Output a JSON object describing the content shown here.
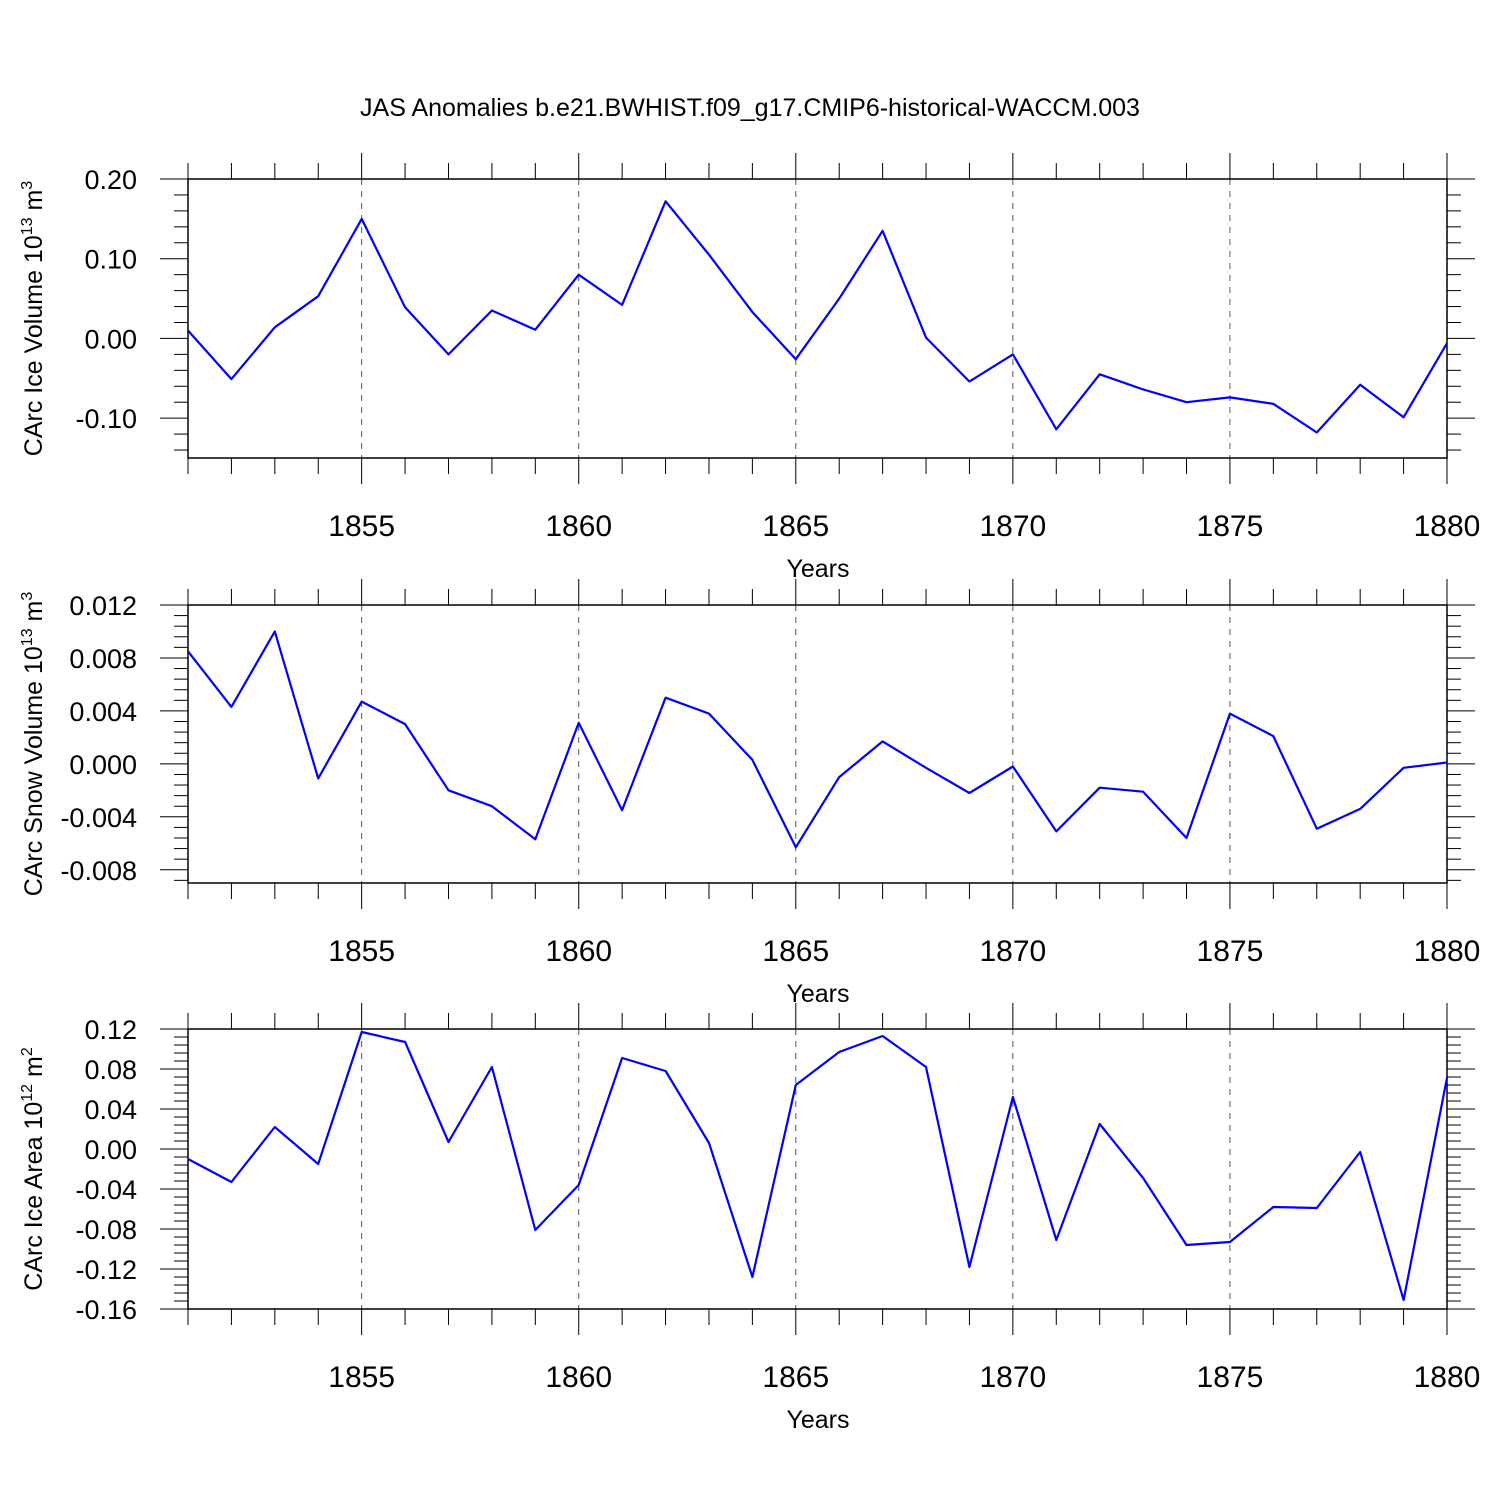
{
  "page": {
    "title": "JAS Anomalies b.e21.BWHIST.f09_g17.CMIP6-historical-WACCM.003"
  },
  "colors": {
    "series": "#0000ff",
    "axis": "#000000",
    "grid": "#555555"
  },
  "chart_data": [
    {
      "type": "line",
      "title": "JAS Anomalies b.e21.BWHIST.f09_g17.CMIP6-historical-WACCM.003",
      "xlabel": "Years",
      "ylabel": {
        "text": "CArc Ice Volume 10",
        "sup": "13",
        "unit": " m",
        "unit_sup": "3"
      },
      "xlim": [
        1851,
        1880
      ],
      "ylim": [
        -0.15,
        0.2
      ],
      "yticks": [
        -0.1,
        0.0,
        0.1,
        0.2
      ],
      "ytick_labels": [
        "-0.10",
        "0.00",
        "0.10",
        "0.20"
      ],
      "xticks": [
        1855,
        1860,
        1865,
        1870,
        1875,
        1880
      ],
      "xtick_labels": [
        "1855",
        "1860",
        "1865",
        "1870",
        "1875",
        "1880"
      ],
      "grid_x": [
        1855,
        1860,
        1865,
        1870,
        1875
      ],
      "x": [
        1851,
        1852,
        1853,
        1854,
        1855,
        1856,
        1857,
        1858,
        1859,
        1860,
        1861,
        1862,
        1863,
        1864,
        1865,
        1866,
        1867,
        1868,
        1869,
        1870,
        1871,
        1872,
        1873,
        1874,
        1875,
        1876,
        1877,
        1878,
        1879,
        1880
      ],
      "values": [
        0.01,
        -0.051,
        0.014,
        0.053,
        0.15,
        0.039,
        -0.02,
        0.035,
        0.011,
        0.08,
        0.042,
        0.172,
        0.105,
        0.033,
        -0.026,
        0.05,
        0.135,
        0.001,
        -0.054,
        -0.02,
        -0.114,
        -0.045,
        -0.064,
        -0.08,
        -0.074,
        -0.082,
        -0.118,
        -0.058,
        -0.099,
        -0.006
      ]
    },
    {
      "type": "line",
      "title": "",
      "xlabel": "Years",
      "ylabel": {
        "text": "CArc Snow Volume 10",
        "sup": "13",
        "unit": " m",
        "unit_sup": "3"
      },
      "xlim": [
        1851,
        1880
      ],
      "ylim": [
        -0.009,
        0.012
      ],
      "yticks": [
        -0.008,
        -0.004,
        0.0,
        0.004,
        0.008,
        0.012
      ],
      "ytick_labels": [
        "-0.008",
        "-0.004",
        "0.000",
        "0.004",
        "0.008",
        "0.012"
      ],
      "xticks": [
        1855,
        1860,
        1865,
        1870,
        1875,
        1880
      ],
      "xtick_labels": [
        "1855",
        "1860",
        "1865",
        "1870",
        "1875",
        "1880"
      ],
      "grid_x": [
        1855,
        1860,
        1865,
        1870,
        1875
      ],
      "x": [
        1851,
        1852,
        1853,
        1854,
        1855,
        1856,
        1857,
        1858,
        1859,
        1860,
        1861,
        1862,
        1863,
        1864,
        1865,
        1866,
        1867,
        1868,
        1869,
        1870,
        1871,
        1872,
        1873,
        1874,
        1875,
        1876,
        1877,
        1878,
        1879,
        1880
      ],
      "values": [
        0.0085,
        0.0043,
        0.01,
        -0.0011,
        0.0047,
        0.003,
        -0.002,
        -0.0032,
        -0.0057,
        0.0031,
        -0.0035,
        0.005,
        0.0038,
        0.0003,
        -0.0063,
        -0.001,
        0.0017,
        -0.0003,
        -0.0022,
        -0.0002,
        -0.0051,
        -0.0018,
        -0.0021,
        -0.0056,
        0.0038,
        0.0021,
        -0.0049,
        -0.0034,
        -0.0003,
        0.0001
      ]
    },
    {
      "type": "line",
      "title": "",
      "xlabel": "Years",
      "ylabel": {
        "text": "CArc Ice Area 10",
        "sup": "12",
        "unit": " m",
        "unit_sup": "2"
      },
      "xlim": [
        1851,
        1880
      ],
      "ylim": [
        -0.16,
        0.12
      ],
      "yticks": [
        -0.16,
        -0.12,
        -0.08,
        -0.04,
        0.0,
        0.04,
        0.08,
        0.12
      ],
      "ytick_labels": [
        "-0.16",
        "-0.12",
        "-0.08",
        "-0.04",
        "0.00",
        "0.04",
        "0.08",
        "0.12"
      ],
      "xticks": [
        1855,
        1860,
        1865,
        1870,
        1875,
        1880
      ],
      "xtick_labels": [
        "1855",
        "1860",
        "1865",
        "1870",
        "1875",
        "1880"
      ],
      "grid_x": [
        1855,
        1860,
        1865,
        1870,
        1875
      ],
      "x": [
        1851,
        1852,
        1853,
        1854,
        1855,
        1856,
        1857,
        1858,
        1859,
        1860,
        1861,
        1862,
        1863,
        1864,
        1865,
        1866,
        1867,
        1868,
        1869,
        1870,
        1871,
        1872,
        1873,
        1874,
        1875,
        1876,
        1877,
        1878,
        1879,
        1880
      ],
      "values": [
        -0.01,
        -0.033,
        0.022,
        -0.015,
        0.117,
        0.107,
        0.007,
        0.082,
        -0.081,
        -0.036,
        0.091,
        0.078,
        0.006,
        -0.128,
        0.064,
        0.097,
        0.113,
        0.082,
        -0.118,
        0.052,
        -0.091,
        0.025,
        -0.029,
        -0.096,
        -0.093,
        -0.058,
        -0.059,
        -0.003,
        -0.151,
        0.071
      ]
    }
  ]
}
